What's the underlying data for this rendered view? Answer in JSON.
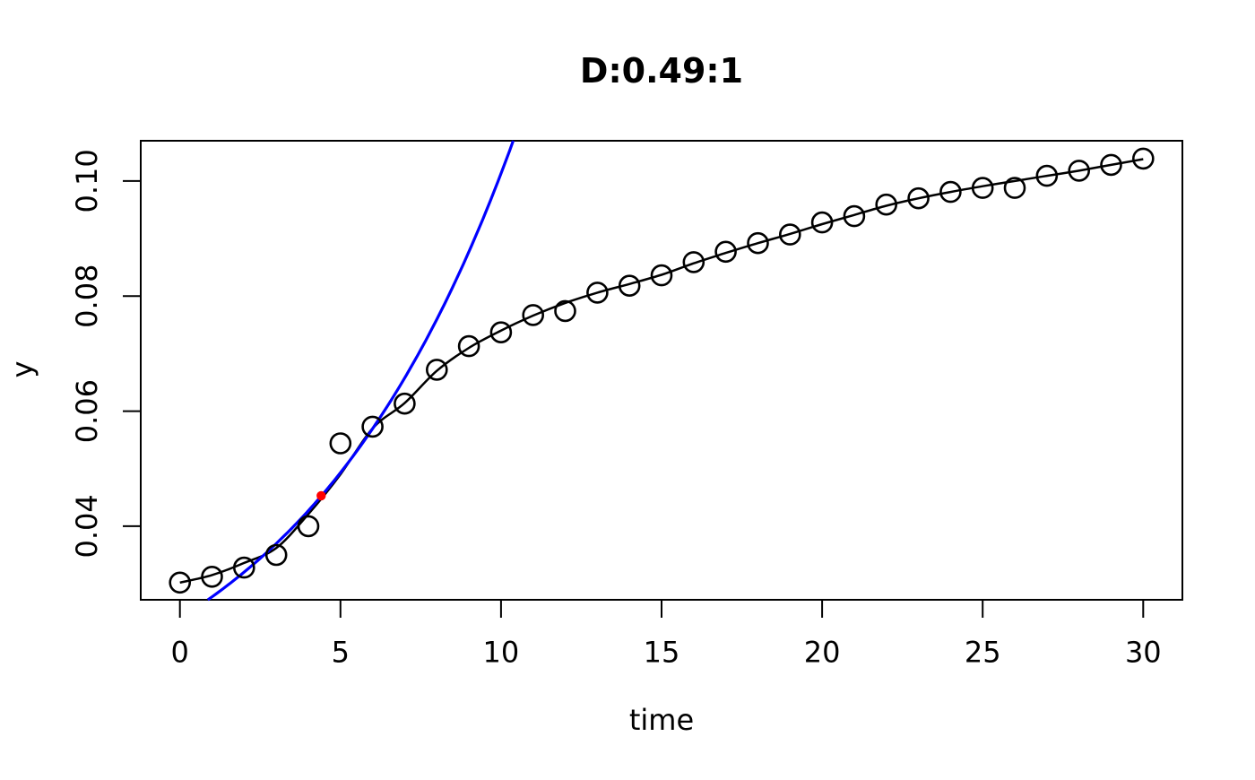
{
  "figure": {
    "background": "#FFFFFF",
    "foreground": "#000000"
  },
  "chart_data": {
    "type": "scatter",
    "title": "D:0.49:1",
    "xlabel": "time",
    "ylabel": "y",
    "xlim": [
      -1.22,
      31.22
    ],
    "ylim": [
      0.0272,
      0.107
    ],
    "x_ticks": [
      0,
      5,
      10,
      15,
      20,
      25,
      30
    ],
    "x_tick_labels": [
      "0",
      "5",
      "10",
      "15",
      "20",
      "25",
      "30"
    ],
    "y_ticks": [
      0.04,
      0.06,
      0.08,
      0.1
    ],
    "y_tick_labels": [
      "0.04",
      "0.06",
      "0.08",
      "0.10"
    ],
    "grid": false,
    "legend": null,
    "series": [
      {
        "name": "observations",
        "kind": "scatter",
        "marker": "open-circle",
        "color": "#000000",
        "x": [
          0,
          1,
          2,
          3,
          4,
          5,
          6,
          7,
          8,
          9,
          10,
          11,
          12,
          13,
          14,
          15,
          16,
          17,
          18,
          19,
          20,
          21,
          22,
          23,
          24,
          25,
          26,
          27,
          28,
          29,
          30
        ],
        "y": [
          0.0302,
          0.0312,
          0.0328,
          0.035,
          0.04,
          0.0544,
          0.0573,
          0.0613,
          0.0672,
          0.0713,
          0.0737,
          0.0767,
          0.0774,
          0.0806,
          0.0818,
          0.0836,
          0.0859,
          0.0877,
          0.0892,
          0.0907,
          0.0928,
          0.0939,
          0.0959,
          0.097,
          0.0981,
          0.0988,
          0.0988,
          0.1009,
          0.1018,
          0.1028,
          0.1039
        ]
      },
      {
        "name": "fitted-curve",
        "kind": "line",
        "color": "#000000",
        "x": [
          0,
          1,
          2,
          3,
          4,
          5,
          6,
          7,
          8,
          9,
          10,
          11,
          12,
          13,
          14,
          15,
          16,
          17,
          18,
          19,
          20,
          21,
          22,
          23,
          24,
          25,
          26,
          27,
          28,
          29,
          30
        ],
        "y": [
          0.0302,
          0.0315,
          0.0336,
          0.0362,
          0.0421,
          0.049,
          0.057,
          0.0614,
          0.067,
          0.071,
          0.074,
          0.0766,
          0.0788,
          0.0806,
          0.0821,
          0.0837,
          0.0857,
          0.0875,
          0.0892,
          0.0908,
          0.0925,
          0.0941,
          0.0957,
          0.097,
          0.0981,
          0.0991,
          0.1,
          0.1009,
          0.1018,
          0.1028,
          0.1038
        ]
      },
      {
        "name": "exponential-tangent-curve",
        "kind": "line",
        "color": "#0000FF",
        "model": "y = a * exp(r * t), clipped to plot region",
        "a": 0.024,
        "r": 0.144
      },
      {
        "name": "tangent-point",
        "kind": "scatter",
        "marker": "filled-circle",
        "color": "#FF0000",
        "x": [
          4.4
        ],
        "y": [
          0.0453
        ]
      }
    ]
  }
}
